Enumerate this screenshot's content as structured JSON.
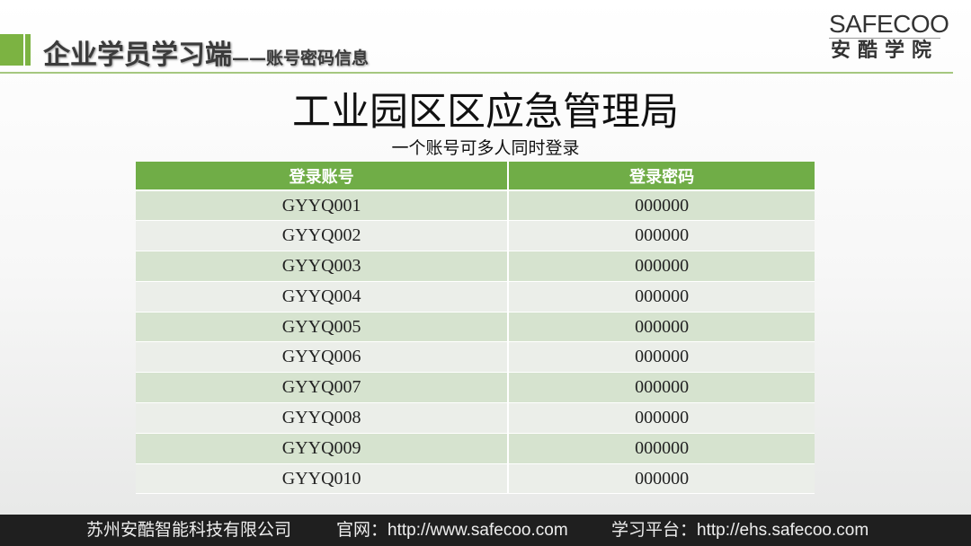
{
  "header": {
    "title": "企业学员学习端",
    "subtitle": "——账号密码信息"
  },
  "logo": {
    "en": "SAFECOO",
    "cn": "安酷学院"
  },
  "main": {
    "title": "工业园区区应急管理局",
    "subtitle": "一个账号可多人同时登录"
  },
  "table": {
    "columns": [
      "登录账号",
      "登录密码"
    ],
    "rows": [
      [
        "GYYQ001",
        "000000"
      ],
      [
        "GYYQ002",
        "000000"
      ],
      [
        "GYYQ003",
        "000000"
      ],
      [
        "GYYQ004",
        "000000"
      ],
      [
        "GYYQ005",
        "000000"
      ],
      [
        "GYYQ006",
        "000000"
      ],
      [
        "GYYQ007",
        "000000"
      ],
      [
        "GYYQ008",
        "000000"
      ],
      [
        "GYYQ009",
        "000000"
      ],
      [
        "GYYQ010",
        "000000"
      ]
    ]
  },
  "footer": {
    "company": "苏州安酷智能科技有限公司",
    "website": "官网：http://www.safecoo.com",
    "platform": "学习平台：http://ehs.safecoo.com"
  },
  "colors": {
    "accent": "#70ad47",
    "row_odd": "#d6e3cf",
    "row_even": "#ebeee9",
    "footer": "#1f1f1f"
  }
}
